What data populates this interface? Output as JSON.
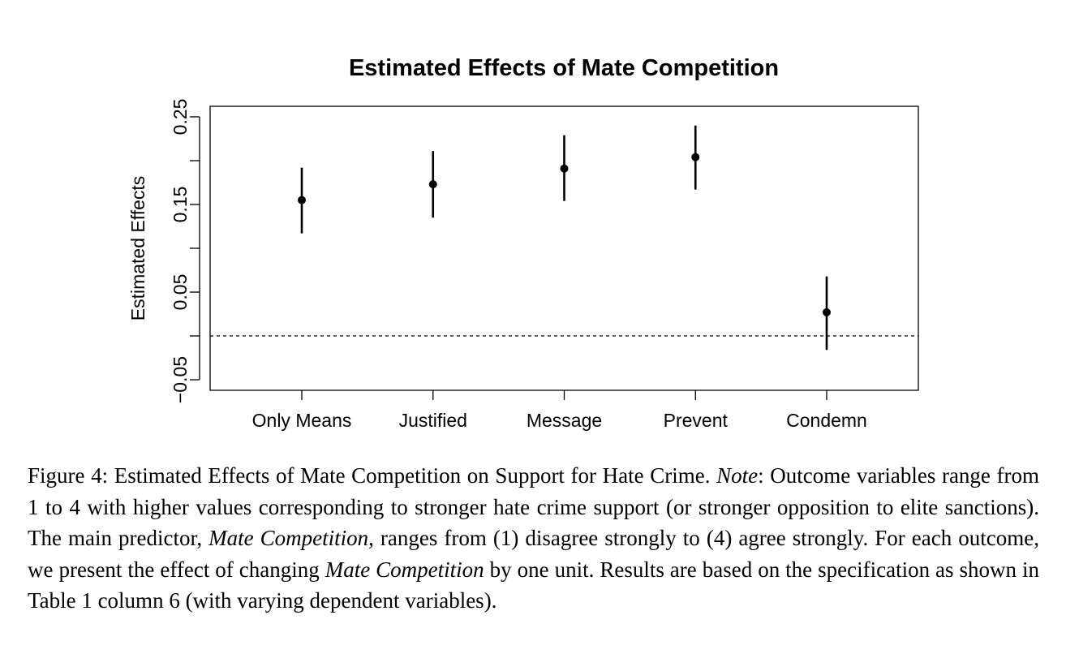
{
  "chart_data": {
    "type": "scatter",
    "title": "Estimated Effects of Mate Competition",
    "xlabel": "",
    "ylabel": "Estimated Effects",
    "categories": [
      "Only Means",
      "Justified",
      "Message",
      "Prevent",
      "Condemn"
    ],
    "series": [
      {
        "estimates": [
          0.155,
          0.173,
          0.191,
          0.204,
          0.027
        ],
        "ci_lower": [
          0.117,
          0.135,
          0.154,
          0.167,
          -0.016
        ],
        "ci_upper": [
          0.192,
          0.211,
          0.229,
          0.24,
          0.068
        ]
      }
    ],
    "reference_line": 0,
    "ylim": [
      -0.062,
      0.262
    ],
    "yticks": [
      -0.05,
      0,
      0.05,
      0.1,
      0.15,
      0.2,
      0.25
    ],
    "ytick_labels": [
      "−0.05",
      "",
      "0.05",
      "",
      "0.15",
      "",
      "0.25"
    ],
    "grid": false,
    "legend": "none"
  },
  "caption": {
    "figure_label": "Figure 4:",
    "title_text": "Estimated Effects of Mate Competition on Support for Hate Crime.",
    "note_label": "Note",
    "note_text_1": ": Outcome variables range from 1 to 4 with higher values corresponding to stronger hate crime support (or stronger opposition to elite sanctions). The main predictor,",
    "predictor_name": "Mate Competition",
    "note_text_2": ", ranges from (1) disagree strongly to (4) agree strongly. For each outcome, we present the effect of changing",
    "predictor_name_2": "Mate Competition",
    "note_text_3": "by one unit. Results are based on the specification as shown in Table 1 column 6 (with varying dependent variables)."
  }
}
